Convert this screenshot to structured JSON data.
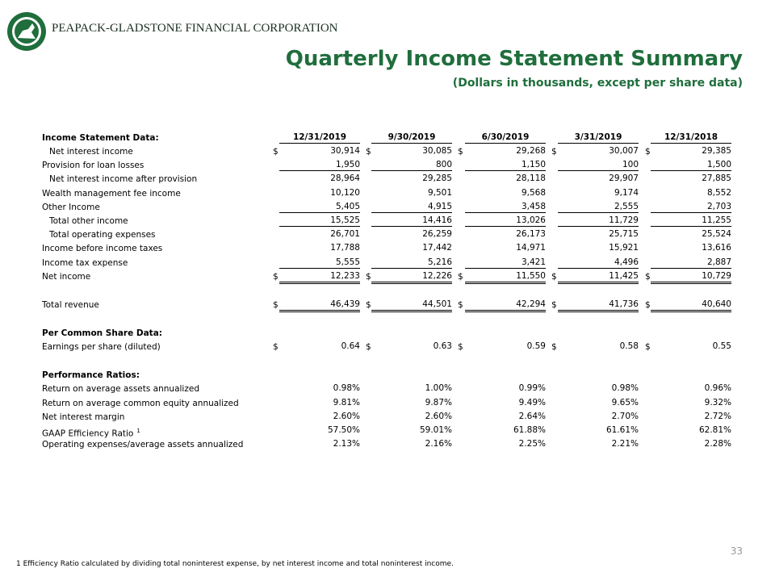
{
  "header": {
    "company": "PEAPACK-GLADSTONE FINANCIAL CORPORATION",
    "title": "Quarterly Income Statement Summary",
    "subtitle": "(Dollars in thousands, except per share data)"
  },
  "table": {
    "currency": "$",
    "columns": [
      "12/31/2019",
      "9/30/2019",
      "6/30/2019",
      "3/31/2019",
      "12/31/2018"
    ],
    "sections": [
      {
        "title": "Income Statement Data:",
        "rows": [
          {
            "label": "Net interest income",
            "indent": true,
            "dollar": true,
            "values": [
              "30,914",
              "30,085",
              "29,268",
              "30,007",
              "29,385"
            ]
          },
          {
            "label": "Provision for loan losses",
            "underline": "single",
            "values": [
              "1,950",
              "800",
              "1,150",
              "100",
              "1,500"
            ]
          },
          {
            "label": "Net interest income after provision",
            "indent": true,
            "values": [
              "28,964",
              "29,285",
              "28,118",
              "29,907",
              "27,885"
            ]
          },
          {
            "label": "Wealth management fee income",
            "values": [
              "10,120",
              "9,501",
              "9,568",
              "9,174",
              "8,552"
            ]
          },
          {
            "label": "Other Income",
            "underline": "single",
            "values": [
              "5,405",
              "4,915",
              "3,458",
              "2,555",
              "2,703"
            ]
          },
          {
            "label": "Total other income",
            "indent": true,
            "underline": "single",
            "values": [
              "15,525",
              "14,416",
              "13,026",
              "11,729",
              "11,255"
            ]
          },
          {
            "label": "Total operating expenses",
            "indent": true,
            "values": [
              "26,701",
              "26,259",
              "26,173",
              "25,715",
              "25,524"
            ]
          },
          {
            "label": "Income before income taxes",
            "values": [
              "17,788",
              "17,442",
              "14,971",
              "15,921",
              "13,616"
            ]
          },
          {
            "label": "Income tax expense",
            "underline": "single",
            "values": [
              "5,555",
              "5,216",
              "3,421",
              "4,496",
              "2,887"
            ]
          },
          {
            "label": "Net income",
            "dollar": true,
            "underline": "double",
            "values": [
              "12,233",
              "12,226",
              "11,550",
              "11,425",
              "10,729"
            ]
          }
        ]
      },
      {
        "rows": [
          {
            "label": "Total revenue",
            "dollar": true,
            "underline": "double",
            "values": [
              "46,439",
              "44,501",
              "42,294",
              "41,736",
              "40,640"
            ]
          }
        ]
      },
      {
        "title": "Per Common Share Data:",
        "rows": [
          {
            "label": "Earnings per share (diluted)",
            "dollar": true,
            "values": [
              "0.64",
              "0.63",
              "0.59",
              "0.58",
              "0.55"
            ]
          }
        ]
      },
      {
        "title": "Performance Ratios:",
        "rows": [
          {
            "label": "Return on average assets annualized",
            "values": [
              "0.98%",
              "1.00%",
              "0.99%",
              "0.98%",
              "0.96%"
            ]
          },
          {
            "label": "Return on average common equity annualized",
            "values": [
              "9.81%",
              "9.87%",
              "9.49%",
              "9.65%",
              "9.32%"
            ]
          },
          {
            "label": "Net interest margin",
            "values": [
              "2.60%",
              "2.60%",
              "2.64%",
              "2.70%",
              "2.72%"
            ]
          },
          {
            "label": "GAAP Efficiency Ratio",
            "note": "1",
            "values": [
              "57.50%",
              "59.01%",
              "61.88%",
              "61.61%",
              "62.81%"
            ]
          },
          {
            "label": "Operating expenses/average assets annualized",
            "values": [
              "2.13%",
              "2.16%",
              "2.25%",
              "2.21%",
              "2.28%"
            ]
          }
        ]
      }
    ]
  },
  "page_number": "33",
  "footnote": "1 Efficiency Ratio calculated by dividing total noninterest expense, by net interest income and total noninterest income."
}
